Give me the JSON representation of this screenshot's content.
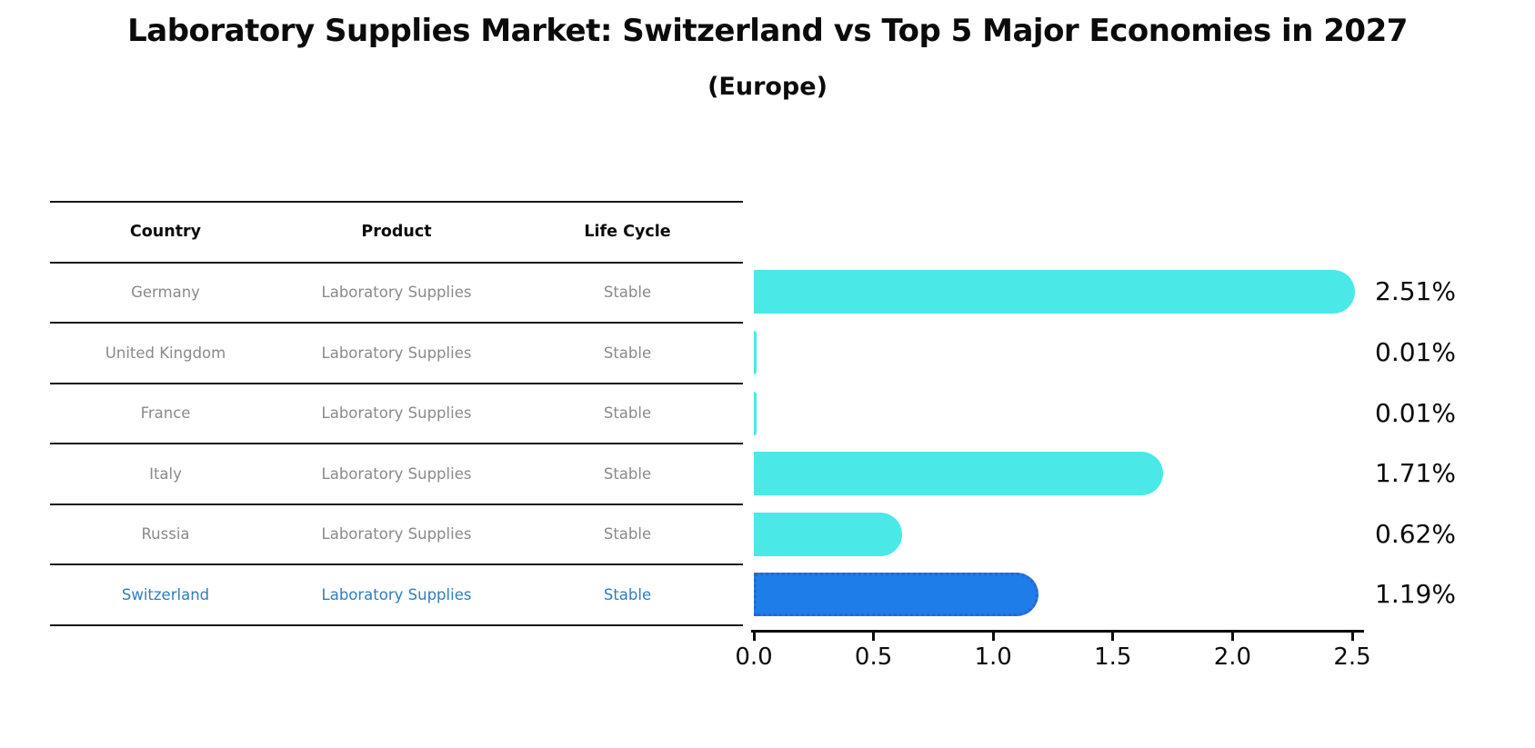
{
  "title": "Laboratory Supplies Market: Switzerland vs Top 5 Major Economies in 2027",
  "subtitle": "(Europe)",
  "table": {
    "headers": [
      "Country",
      "Product",
      "Life Cycle"
    ],
    "rows": [
      {
        "country": "Germany",
        "product": "Laboratory Supplies",
        "life_cycle": "Stable",
        "highlight": false
      },
      {
        "country": "United Kingdom",
        "product": "Laboratory Supplies",
        "life_cycle": "Stable",
        "highlight": false
      },
      {
        "country": "France",
        "product": "Laboratory Supplies",
        "life_cycle": "Stable",
        "highlight": false
      },
      {
        "country": "Italy",
        "product": "Laboratory Supplies",
        "life_cycle": "Stable",
        "highlight": false
      },
      {
        "country": "Russia",
        "product": "Laboratory Supplies",
        "life_cycle": "Stable",
        "highlight": false
      },
      {
        "country": "Switzerland",
        "product": "Laboratory Supplies",
        "life_cycle": "Stable",
        "highlight": true
      }
    ]
  },
  "chart_data": {
    "type": "bar",
    "orientation": "horizontal",
    "title": "Laboratory Supplies Market: Switzerland vs Top 5 Major Economies in 2027",
    "subtitle": "(Europe)",
    "categories": [
      "Germany",
      "United Kingdom",
      "France",
      "Italy",
      "Russia",
      "Switzerland"
    ],
    "values": [
      2.51,
      0.01,
      0.01,
      1.71,
      0.62,
      1.19
    ],
    "value_labels": [
      "2.51%",
      "0.01%",
      "0.01%",
      "1.71%",
      "0.62%",
      "1.19%"
    ],
    "xlim": [
      0,
      2.56
    ],
    "xticks": [
      0,
      0.5,
      1.0,
      1.5,
      2.0,
      2.5
    ],
    "xtick_labels": [
      "0.0",
      "0.5",
      "1.0",
      "1.5",
      "2.0",
      "2.5"
    ],
    "grid": false,
    "legend": false,
    "highlight_index": 5
  },
  "colors": {
    "bar": "#4ae8e6",
    "highlight_bar": "#1e7de8",
    "highlight_bar_border": "#2f63d0",
    "highlight_text": "#2e7ebf",
    "table_text": "#8a8a8a",
    "axis_text": "#0b0b0b"
  }
}
